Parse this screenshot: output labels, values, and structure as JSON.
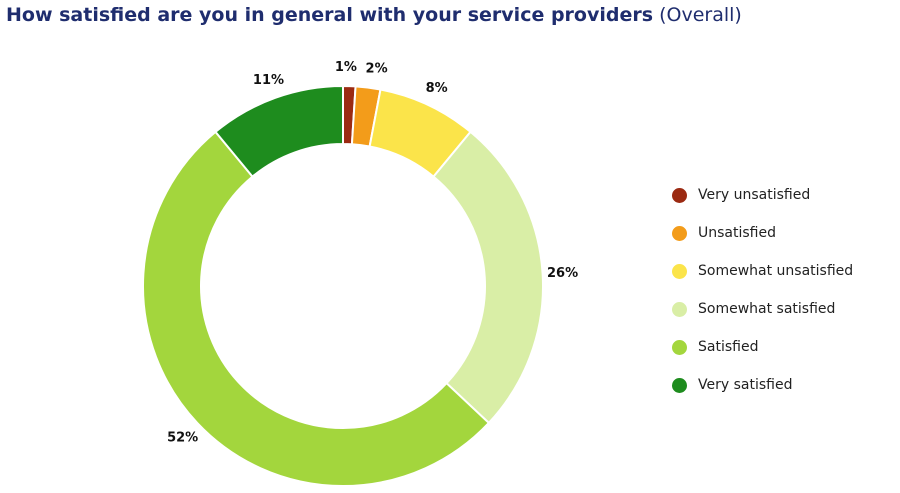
{
  "header": {
    "title_main": "How satisfied are you in general with your service providers",
    "title_sub": "(Overall)"
  },
  "chart_data": {
    "type": "pie",
    "variant": "donut",
    "title": "How satisfied are you in general with your service providers (Overall)",
    "legend_position": "right",
    "categories": [
      "Very unsatisfied",
      "Unsatisfied",
      "Somewhat unsatisfied",
      "Somewhat satisfied",
      "Satisfied",
      "Very satisfied"
    ],
    "values": [
      1,
      2,
      8,
      26,
      52,
      11
    ],
    "labels": [
      "1%",
      "2%",
      "8%",
      "26%",
      "52%",
      "11%"
    ],
    "colors": [
      "#9b2a12",
      "#f39c1a",
      "#fbe44a",
      "#d9eea6",
      "#a3d63d",
      "#1e8c1e"
    ]
  }
}
